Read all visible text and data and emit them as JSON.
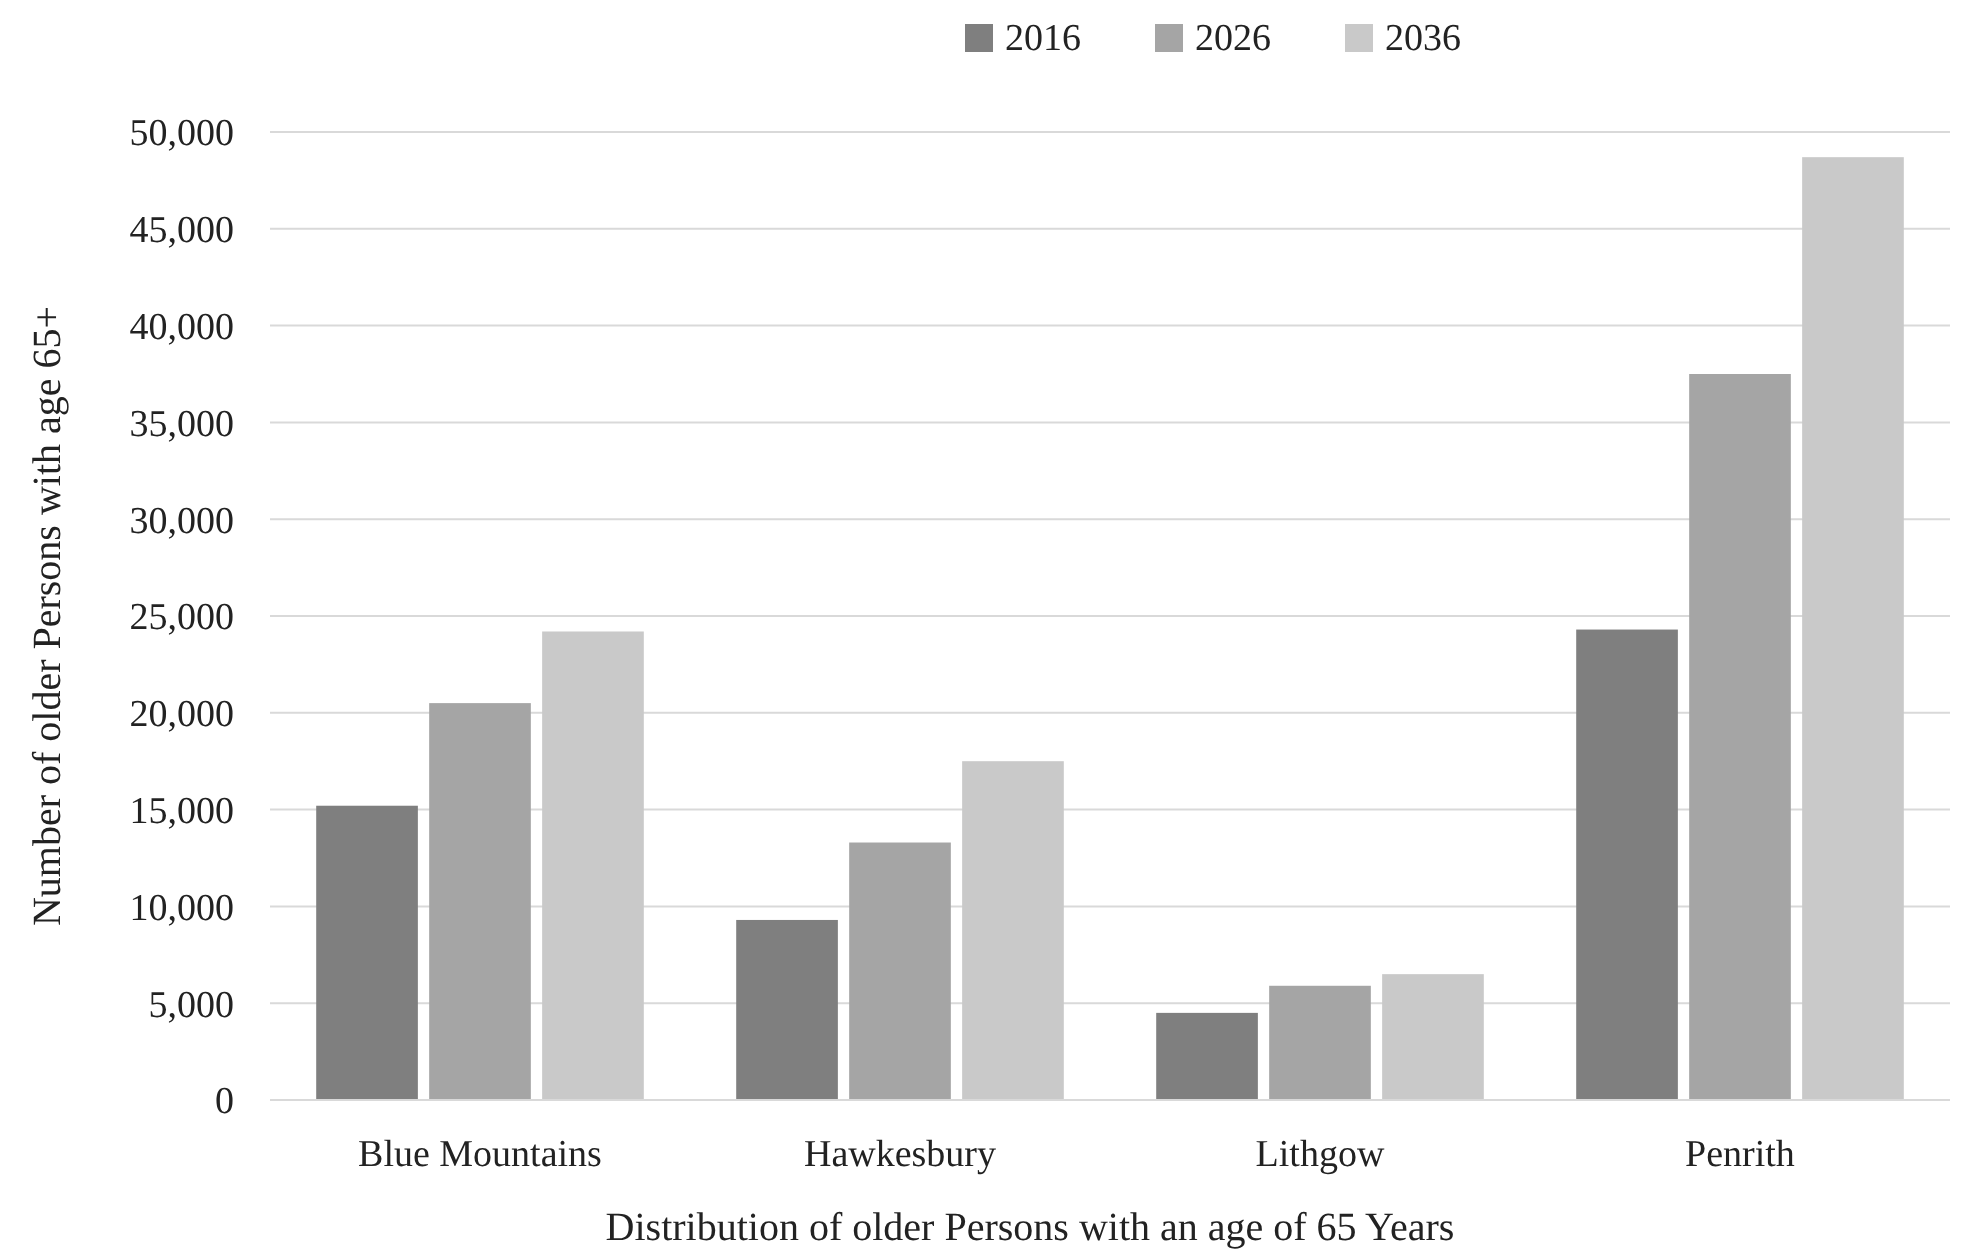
{
  "chart_data": {
    "type": "bar",
    "xlabel": "Distribution of older Persons with an age of 65 Years",
    "ylabel": "Number of older Persons with age 65+",
    "categories": [
      "Blue Mountains",
      "Hawkesbury",
      "Lithgow",
      "Penrith"
    ],
    "series": [
      {
        "name": "2016",
        "color": "#7f7f7f",
        "values": [
          15200,
          9300,
          4500,
          24300
        ]
      },
      {
        "name": "2026",
        "color": "#a5a5a5",
        "values": [
          20500,
          13300,
          5900,
          37500
        ]
      },
      {
        "name": "2036",
        "color": "#c9c9c9",
        "values": [
          24200,
          17500,
          6500,
          48700
        ]
      }
    ],
    "ylim": [
      0,
      50000
    ],
    "yticks": [
      {
        "value": 0,
        "label": "0"
      },
      {
        "value": 5000,
        "label": "5,000"
      },
      {
        "value": 10000,
        "label": "10,000"
      },
      {
        "value": 15000,
        "label": "15,000"
      },
      {
        "value": 20000,
        "label": "20,000"
      },
      {
        "value": 25000,
        "label": "25,000"
      },
      {
        "value": 30000,
        "label": "30,000"
      },
      {
        "value": 35000,
        "label": "35,000"
      },
      {
        "value": 40000,
        "label": "40,000"
      },
      {
        "value": 45000,
        "label": "45,000"
      },
      {
        "value": 50000,
        "label": "50,000"
      }
    ],
    "grid": "y",
    "legend": "top"
  }
}
